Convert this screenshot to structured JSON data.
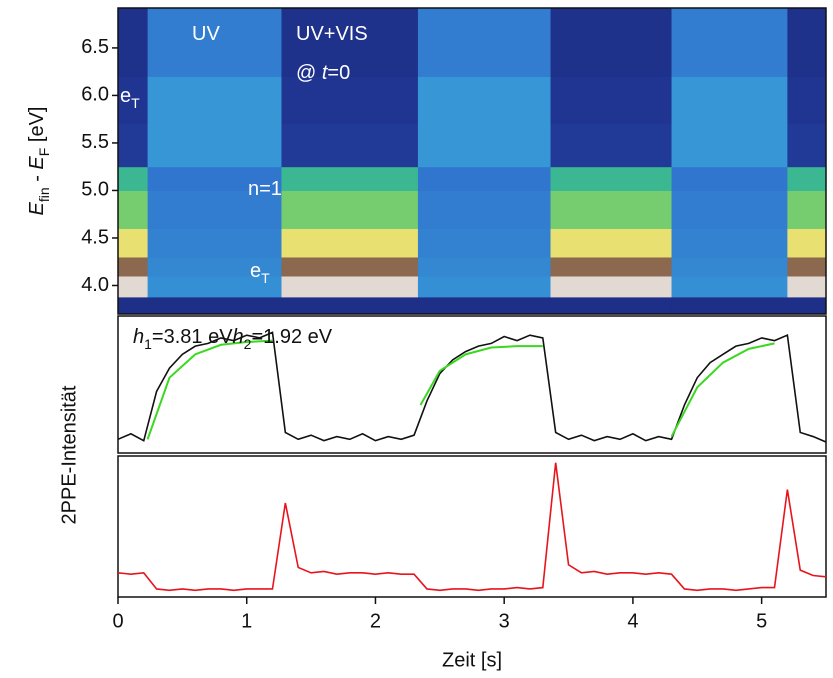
{
  "chart_data": [
    {
      "type": "heatmap",
      "ylabel": [
        "E",
        "fin",
        " - ",
        "E",
        "F",
        " [eV]"
      ],
      "x_edges": [
        0,
        0.23,
        1.27,
        2.33,
        3.36,
        4.3,
        5.2,
        5.5
      ],
      "y_edges": [
        3.7,
        3.88,
        4.1,
        4.3,
        4.6,
        5.0,
        5.25,
        5.7,
        6.2,
        6.92
      ],
      "z": [
        [
          0.05,
          0.97,
          0.88,
          0.75,
          0.65,
          0.55,
          0.1,
          0.08,
          0.06
        ],
        [
          0.05,
          0.4,
          0.38,
          0.36,
          0.35,
          0.33,
          0.42,
          0.42,
          0.35
        ],
        [
          0.05,
          0.97,
          0.88,
          0.75,
          0.65,
          0.55,
          0.1,
          0.08,
          0.06
        ],
        [
          0.05,
          0.4,
          0.38,
          0.36,
          0.35,
          0.33,
          0.42,
          0.42,
          0.35
        ],
        [
          0.05,
          0.97,
          0.88,
          0.75,
          0.65,
          0.55,
          0.1,
          0.08,
          0.06
        ],
        [
          0.05,
          0.4,
          0.38,
          0.36,
          0.35,
          0.33,
          0.42,
          0.42,
          0.35
        ],
        [
          0.05,
          0.97,
          0.88,
          0.75,
          0.65,
          0.55,
          0.1,
          0.08,
          0.06
        ]
      ],
      "xlim": [
        0,
        5.5
      ],
      "ylim": [
        3.7,
        6.92
      ],
      "yticks": [
        {
          "value": 4,
          "label": "4.0"
        },
        4.5,
        {
          "value": 5,
          "label": "5.0"
        },
        5.5,
        {
          "value": 6,
          "label": "6.0"
        },
        6.5
      ],
      "annotations": [
        {
          "parts": [
            "UV"
          ]
        },
        {
          "parts": [
            "UV+VIS"
          ]
        },
        {
          "parts": [
            "@ ",
            "t",
            "=0"
          ]
        },
        {
          "parts": [
            "e",
            "T"
          ]
        },
        {
          "parts": [
            "n=1"
          ]
        },
        {
          "parts": [
            "e",
            "T"
          ]
        }
      ]
    },
    {
      "type": "line",
      "x": [
        0,
        0.1,
        0.2,
        0.3,
        0.4,
        0.5,
        0.6,
        0.7,
        0.8,
        0.9,
        1.0,
        1.1,
        1.2,
        1.3,
        1.4,
        1.5,
        1.6,
        1.7,
        1.8,
        1.9,
        2.0,
        2.1,
        2.2,
        2.3,
        2.4,
        2.5,
        2.6,
        2.7,
        2.8,
        2.9,
        3.0,
        3.1,
        3.2,
        3.3,
        3.4,
        3.5,
        3.6,
        3.7,
        3.8,
        3.9,
        4.0,
        4.1,
        4.2,
        4.3,
        4.4,
        4.5,
        4.6,
        4.7,
        4.8,
        4.9,
        5.0,
        5.1,
        5.2,
        5.3,
        5.4,
        5.5
      ],
      "series": [
        {
          "color": "#111111",
          "values": [
            0.1,
            0.14,
            0.09,
            0.45,
            0.62,
            0.72,
            0.78,
            0.8,
            0.84,
            0.82,
            0.86,
            0.84,
            0.88,
            0.15,
            0.1,
            0.13,
            0.09,
            0.12,
            0.1,
            0.14,
            0.09,
            0.12,
            0.1,
            0.13,
            0.38,
            0.58,
            0.68,
            0.74,
            0.78,
            0.8,
            0.85,
            0.82,
            0.86,
            0.84,
            0.15,
            0.1,
            0.13,
            0.09,
            0.12,
            0.1,
            0.14,
            0.09,
            0.12,
            0.1,
            0.35,
            0.55,
            0.66,
            0.72,
            0.78,
            0.8,
            0.84,
            0.82,
            0.86,
            0.15,
            0.12,
            0.08
          ]
        },
        {
          "color": "#3ad820",
          "x": [
            0.23,
            0.4,
            0.6,
            0.8,
            1.0,
            1.2
          ],
          "values": [
            0.1,
            0.55,
            0.72,
            0.79,
            0.81,
            0.82
          ]
        },
        {
          "color": "#3ad820",
          "x": [
            2.35,
            2.5,
            2.7,
            2.9,
            3.1,
            3.3
          ],
          "values": [
            0.35,
            0.6,
            0.72,
            0.77,
            0.78,
            0.78
          ]
        },
        {
          "color": "#3ad820",
          "x": [
            4.3,
            4.5,
            4.7,
            4.9,
            5.1
          ],
          "values": [
            0.12,
            0.48,
            0.66,
            0.76,
            0.8
          ]
        }
      ],
      "xlim": [
        0,
        5.5
      ],
      "ylim": [
        0,
        1
      ],
      "annotation": {
        "parts": [
          "h",
          "1",
          "=3.81 eV",
          "h",
          "2",
          "=1.92 eV"
        ]
      }
    },
    {
      "type": "line",
      "x": [
        0,
        0.1,
        0.2,
        0.3,
        0.4,
        0.5,
        0.6,
        0.7,
        0.8,
        0.9,
        1.0,
        1.1,
        1.2,
        1.3,
        1.4,
        1.5,
        1.6,
        1.7,
        1.8,
        1.9,
        2.0,
        2.1,
        2.2,
        2.3,
        2.4,
        2.5,
        2.6,
        2.7,
        2.8,
        2.9,
        3.0,
        3.1,
        3.2,
        3.3,
        3.4,
        3.5,
        3.6,
        3.7,
        3.8,
        3.9,
        4.0,
        4.1,
        4.2,
        4.3,
        4.4,
        4.5,
        4.6,
        4.7,
        4.8,
        4.9,
        5.0,
        5.1,
        5.2,
        5.3,
        5.4,
        5.5
      ],
      "series": [
        {
          "color": "#e8141c",
          "values": [
            0.18,
            0.17,
            0.18,
            0.06,
            0.05,
            0.06,
            0.05,
            0.06,
            0.06,
            0.05,
            0.06,
            0.06,
            0.06,
            0.7,
            0.22,
            0.18,
            0.19,
            0.17,
            0.18,
            0.18,
            0.17,
            0.18,
            0.17,
            0.17,
            0.06,
            0.05,
            0.06,
            0.06,
            0.05,
            0.06,
            0.06,
            0.07,
            0.06,
            0.07,
            1.0,
            0.24,
            0.18,
            0.19,
            0.17,
            0.18,
            0.18,
            0.17,
            0.18,
            0.17,
            0.06,
            0.05,
            0.06,
            0.06,
            0.05,
            0.06,
            0.07,
            0.07,
            0.8,
            0.2,
            0.16,
            0.15
          ]
        }
      ],
      "xlim": [
        0,
        5.5
      ],
      "ylim": [
        0,
        1.05
      ],
      "xticks": [
        0,
        1,
        2,
        3,
        4,
        5
      ],
      "xlabel": "Zeit [s]",
      "ylabel": "2PPE-Intensität"
    }
  ]
}
